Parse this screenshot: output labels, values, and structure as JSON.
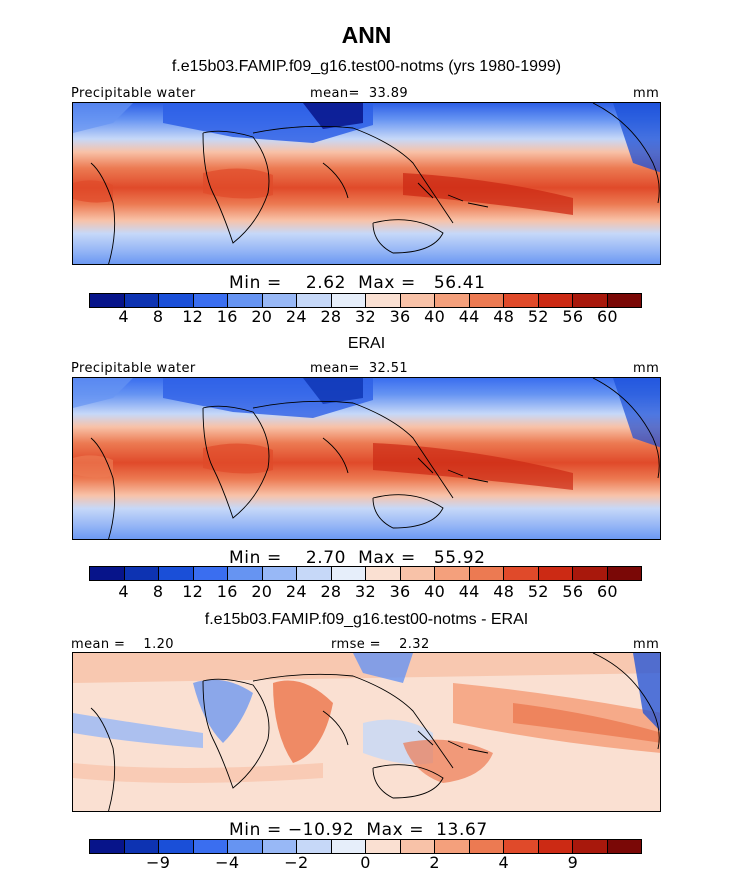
{
  "header": {
    "title": "ANN",
    "subtitle": "f.e15b03.FAMIP.f09_g16.test00-notms (yrs 1980-1999)"
  },
  "panels": [
    {
      "title": "",
      "left_label": "Precipitable water",
      "center_label": "mean=  33.89",
      "right_label": "mm",
      "stats": "Min =    2.62  Max =   56.41",
      "colorbar": {
        "colors": [
          "#07148a",
          "#0d33b2",
          "#1a4fd8",
          "#3a6ef0",
          "#6694f2",
          "#98b8f6",
          "#c6d8f8",
          "#e6eefa",
          "#fae0d2",
          "#f8c2a8",
          "#f4a07c",
          "#ec7a52",
          "#e04a2a",
          "#cc2a14",
          "#a8180c",
          "#7a0806"
        ],
        "ticks": [
          "4",
          "8",
          "12",
          "16",
          "20",
          "24",
          "28",
          "32",
          "36",
          "40",
          "44",
          "48",
          "52",
          "56",
          "60"
        ]
      }
    },
    {
      "title": "ERAI",
      "left_label": "Precipitable water",
      "center_label": "mean=  32.51",
      "right_label": "mm",
      "stats": "Min =    2.70  Max =   55.92",
      "colorbar": {
        "colors": [
          "#07148a",
          "#0d33b2",
          "#1a4fd8",
          "#3a6ef0",
          "#6694f2",
          "#98b8f6",
          "#c6d8f8",
          "#e6eefa",
          "#fae0d2",
          "#f8c2a8",
          "#f4a07c",
          "#ec7a52",
          "#e04a2a",
          "#cc2a14",
          "#a8180c",
          "#7a0806"
        ],
        "ticks": [
          "4",
          "8",
          "12",
          "16",
          "20",
          "24",
          "28",
          "32",
          "36",
          "40",
          "44",
          "48",
          "52",
          "56",
          "60"
        ]
      }
    },
    {
      "title": "f.e15b03.FAMIP.f09_g16.test00-notms - ERAI",
      "left_label": "mean =    1.20",
      "center_label": "rmse =    2.32",
      "right_label": "mm",
      "stats": "Min = −10.92  Max =  13.67",
      "colorbar": {
        "colors": [
          "#07148a",
          "#0d33b2",
          "#1a4fd8",
          "#3a6ef0",
          "#6694f2",
          "#98b8f6",
          "#c6d8f8",
          "#e6eefa",
          "#fae0d2",
          "#f8c2a8",
          "#f4a07c",
          "#ec7a52",
          "#e04a2a",
          "#cc2a14",
          "#a8180c",
          "#7a0806"
        ],
        "ticks": [
          "−9",
          "−4",
          "−2",
          "0",
          "2",
          "4",
          "9"
        ]
      }
    }
  ]
}
